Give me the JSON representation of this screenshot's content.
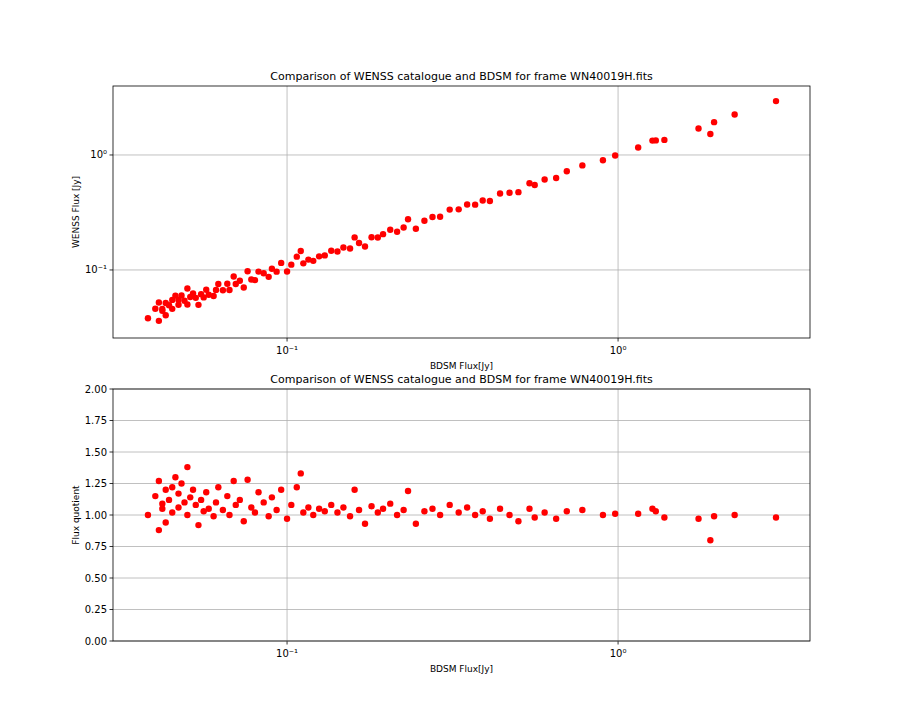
{
  "chart_data": [
    {
      "type": "scatter",
      "title": "Comparison of WENSS catalogue and BDSM for frame WN40019H.fits",
      "x_label": "BDSM Flux[Jy]",
      "y_label": "WENSS Flux [Jy]",
      "color": "#ff0000",
      "marker": "o",
      "log": true,
      "grid": true,
      "xlim": [
        0.0298,
        3.8
      ],
      "ylim": [
        0.0256,
        3.98
      ],
      "xticks": [
        {
          "value": 0.1,
          "label": "10⁻¹"
        },
        {
          "value": 1,
          "label": "10⁰"
        }
      ],
      "yticks": [
        {
          "value": 0.1,
          "label": "10⁻¹"
        },
        {
          "value": 1,
          "label": "10⁰"
        }
      ],
      "x": [
        0.038,
        0.04,
        0.041,
        0.041,
        0.042,
        0.042,
        0.043,
        0.043,
        0.044,
        0.045,
        0.045,
        0.046,
        0.047,
        0.047,
        0.048,
        0.049,
        0.05,
        0.05,
        0.051,
        0.052,
        0.053,
        0.054,
        0.055,
        0.056,
        0.057,
        0.058,
        0.06,
        0.061,
        0.062,
        0.064,
        0.066,
        0.067,
        0.069,
        0.07,
        0.072,
        0.074,
        0.076,
        0.078,
        0.08,
        0.082,
        0.085,
        0.088,
        0.09,
        0.093,
        0.096,
        0.1,
        0.103,
        0.107,
        0.11,
        0.112,
        0.116,
        0.12,
        0.125,
        0.13,
        0.136,
        0.142,
        0.148,
        0.155,
        0.16,
        0.165,
        0.172,
        0.18,
        0.188,
        0.195,
        0.205,
        0.215,
        0.225,
        0.232,
        0.245,
        0.26,
        0.275,
        0.29,
        0.31,
        0.33,
        0.35,
        0.37,
        0.39,
        0.41,
        0.44,
        0.47,
        0.5,
        0.54,
        0.56,
        0.6,
        0.65,
        0.7,
        0.78,
        0.9,
        0.98,
        1.15,
        1.27,
        1.3,
        1.38,
        1.75,
        1.9,
        1.95,
        2.25,
        3.0
      ],
      "values": [
        0.038,
        0.046,
        0.0521,
        0.0361,
        0.0441,
        0.0458,
        0.0404,
        0.0516,
        0.0493,
        0.0549,
        0.0459,
        0.0598,
        0.055,
        0.0498,
        0.06,
        0.0539,
        0.069,
        0.05,
        0.0581,
        0.0624,
        0.0572,
        0.0497,
        0.0616,
        0.0577,
        0.0673,
        0.0609,
        0.0594,
        0.0671,
        0.0756,
        0.0666,
        0.0759,
        0.067,
        0.0876,
        0.0756,
        0.0806,
        0.0703,
        0.0973,
        0.0827,
        0.0816,
        0.0968,
        0.0935,
        0.0871,
        0.1026,
        0.0967,
        0.1152,
        0.097,
        0.1112,
        0.1305,
        0.1463,
        0.1142,
        0.123,
        0.12,
        0.1313,
        0.1339,
        0.1469,
        0.1448,
        0.1569,
        0.1535,
        0.192,
        0.1716,
        0.16,
        0.1926,
        0.1918,
        0.2048,
        0.2235,
        0.215,
        0.234,
        0.2761,
        0.2279,
        0.2678,
        0.2888,
        0.29,
        0.3348,
        0.3366,
        0.371,
        0.37,
        0.4017,
        0.3977,
        0.462,
        0.47,
        0.475,
        0.567,
        0.5488,
        0.612,
        0.6305,
        0.721,
        0.8112,
        0.9,
        0.9898,
        1.1615,
        1.3335,
        1.339,
        1.3524,
        1.6975,
        1.52,
        1.9305,
        2.25,
        2.94
      ]
    },
    {
      "type": "scatter",
      "title": "Comparison of WENSS catalogue and BDSM for frame WN40019H.fits",
      "x_label": "BDSM Flux[Jy]",
      "y_label": "Flux quotient",
      "color": "#ff0000",
      "marker": "o",
      "log": "x",
      "grid": true,
      "xlim": [
        0.0298,
        3.8
      ],
      "ylim": [
        0,
        2
      ],
      "xticks": [
        {
          "value": 0.1,
          "label": "10⁻¹"
        },
        {
          "value": 1,
          "label": "10⁰"
        }
      ],
      "yticks": [
        {
          "value": 0,
          "label": "0.00"
        },
        {
          "value": 0.25,
          "label": "0.25"
        },
        {
          "value": 0.5,
          "label": "0.50"
        },
        {
          "value": 0.75,
          "label": "0.75"
        },
        {
          "value": 1,
          "label": "1.00"
        },
        {
          "value": 1.25,
          "label": "1.25"
        },
        {
          "value": 1.5,
          "label": "1.50"
        },
        {
          "value": 1.75,
          "label": "1.75"
        },
        {
          "value": 2,
          "label": "2.00"
        }
      ],
      "x": [
        0.038,
        0.04,
        0.041,
        0.041,
        0.042,
        0.042,
        0.043,
        0.043,
        0.044,
        0.045,
        0.045,
        0.046,
        0.047,
        0.047,
        0.048,
        0.049,
        0.05,
        0.05,
        0.051,
        0.052,
        0.053,
        0.054,
        0.055,
        0.056,
        0.057,
        0.058,
        0.06,
        0.061,
        0.062,
        0.064,
        0.066,
        0.067,
        0.069,
        0.07,
        0.072,
        0.074,
        0.076,
        0.078,
        0.08,
        0.082,
        0.085,
        0.088,
        0.09,
        0.093,
        0.096,
        0.1,
        0.103,
        0.107,
        0.11,
        0.112,
        0.116,
        0.12,
        0.125,
        0.13,
        0.136,
        0.142,
        0.148,
        0.155,
        0.16,
        0.165,
        0.172,
        0.18,
        0.188,
        0.195,
        0.205,
        0.215,
        0.225,
        0.232,
        0.245,
        0.26,
        0.275,
        0.29,
        0.31,
        0.33,
        0.35,
        0.37,
        0.39,
        0.41,
        0.44,
        0.47,
        0.5,
        0.54,
        0.56,
        0.6,
        0.65,
        0.7,
        0.78,
        0.9,
        0.98,
        1.15,
        1.27,
        1.3,
        1.38,
        1.75,
        1.9,
        1.95,
        2.25,
        3.0
      ],
      "values": [
        1.0,
        1.15,
        1.27,
        0.88,
        1.05,
        1.09,
        0.94,
        1.2,
        1.12,
        1.22,
        1.02,
        1.3,
        1.17,
        1.06,
        1.25,
        1.1,
        1.38,
        1.0,
        1.14,
        1.2,
        1.08,
        0.92,
        1.12,
        1.03,
        1.18,
        1.05,
        0.99,
        1.1,
        1.22,
        1.04,
        1.15,
        1.0,
        1.27,
        1.08,
        1.12,
        0.95,
        1.28,
        1.06,
        1.02,
        1.18,
        1.1,
        0.99,
        1.14,
        1.04,
        1.2,
        0.97,
        1.08,
        1.22,
        1.33,
        1.02,
        1.06,
        1.0,
        1.05,
        1.03,
        1.08,
        1.02,
        1.06,
        0.99,
        1.2,
        1.04,
        0.93,
        1.07,
        1.02,
        1.05,
        1.09,
        1.0,
        1.04,
        1.19,
        0.93,
        1.03,
        1.05,
        1.0,
        1.08,
        1.02,
        1.06,
        1.0,
        1.03,
        0.97,
        1.05,
        1.0,
        0.95,
        1.05,
        0.98,
        1.02,
        0.97,
        1.03,
        1.04,
        1.0,
        1.01,
        1.01,
        1.05,
        1.03,
        0.98,
        0.97,
        0.8,
        0.99,
        1.0,
        0.98
      ]
    }
  ]
}
